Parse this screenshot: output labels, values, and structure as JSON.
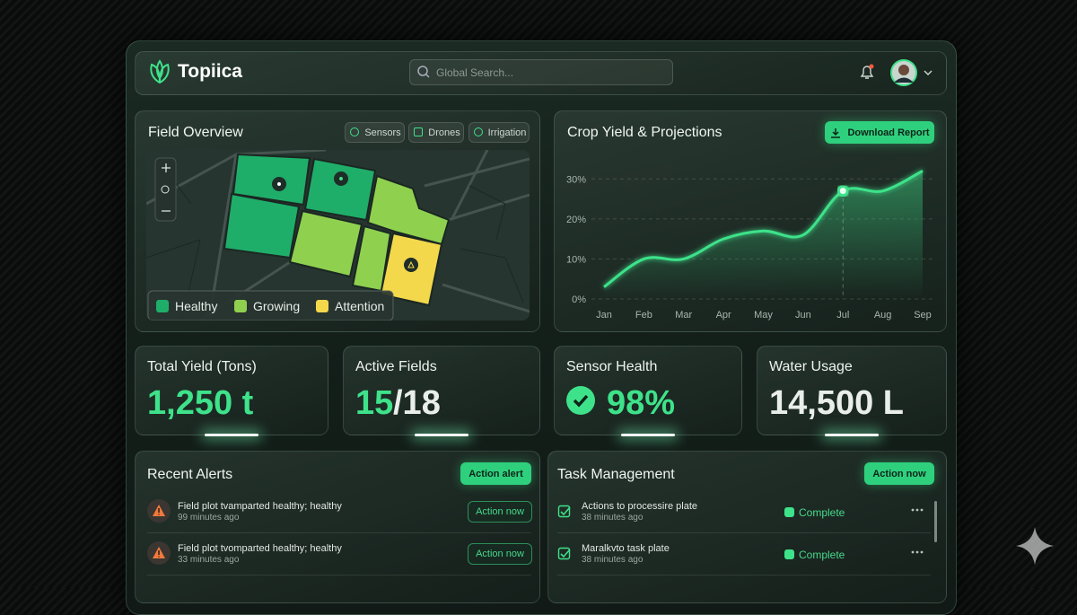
{
  "header": {
    "brand": "Topiica",
    "search_placeholder": "Global Search..."
  },
  "field_overview": {
    "title": "Field Overview",
    "filters": [
      "Sensors",
      "Drones",
      "Irrigation"
    ],
    "legend": [
      {
        "name": "Healthy",
        "color": "#1fae6a"
      },
      {
        "name": "Growing",
        "color": "#8fd14f"
      },
      {
        "name": "Attention",
        "color": "#f3d84c"
      }
    ]
  },
  "chart_data": {
    "type": "line",
    "title": "Crop Yield & Projections",
    "button": "Download Report",
    "categories": [
      "Jan",
      "Feb",
      "Mar",
      "Apr",
      "May",
      "Jun",
      "Jul",
      "Aug",
      "Sep"
    ],
    "values": [
      3,
      10,
      10,
      15,
      17,
      16,
      27,
      27,
      32
    ],
    "color": "#3ee28a",
    "highlight": "Jul",
    "ylim": [
      0,
      35
    ],
    "yticks": [
      {
        "value": 0,
        "label": "0%"
      },
      {
        "value": 10,
        "label": "10%"
      },
      {
        "value": 20,
        "label": "20%"
      },
      {
        "value": 30,
        "label": "30%"
      }
    ],
    "grid": true
  },
  "kpis": [
    {
      "title": "Total Yield (Tons)",
      "value": "1,250 t"
    },
    {
      "title": "Active Fields",
      "value": "15",
      "suffix": "/18"
    },
    {
      "title": "Sensor Health",
      "value": "98%"
    },
    {
      "title": "Water Usage",
      "value": "14,500 L"
    }
  ],
  "alerts": {
    "title": "Recent Alerts",
    "button": "Action alert",
    "items": [
      {
        "text": "Field plot tvamparted healthy; healthy",
        "time": "99 minutes ago",
        "action": "Action now"
      },
      {
        "text": "Field plot tvomparted healthy; healthy",
        "time": "33 minutes ago",
        "action": "Action now"
      }
    ]
  },
  "tasks": {
    "title": "Task Management",
    "button": "Action now",
    "items": [
      {
        "text": "Actions to processire plate",
        "time": "38 minutes ago",
        "status": "Complete"
      },
      {
        "text": "Maralkvto task plate",
        "time": "38 minutes ago",
        "status": "Complete"
      }
    ]
  }
}
